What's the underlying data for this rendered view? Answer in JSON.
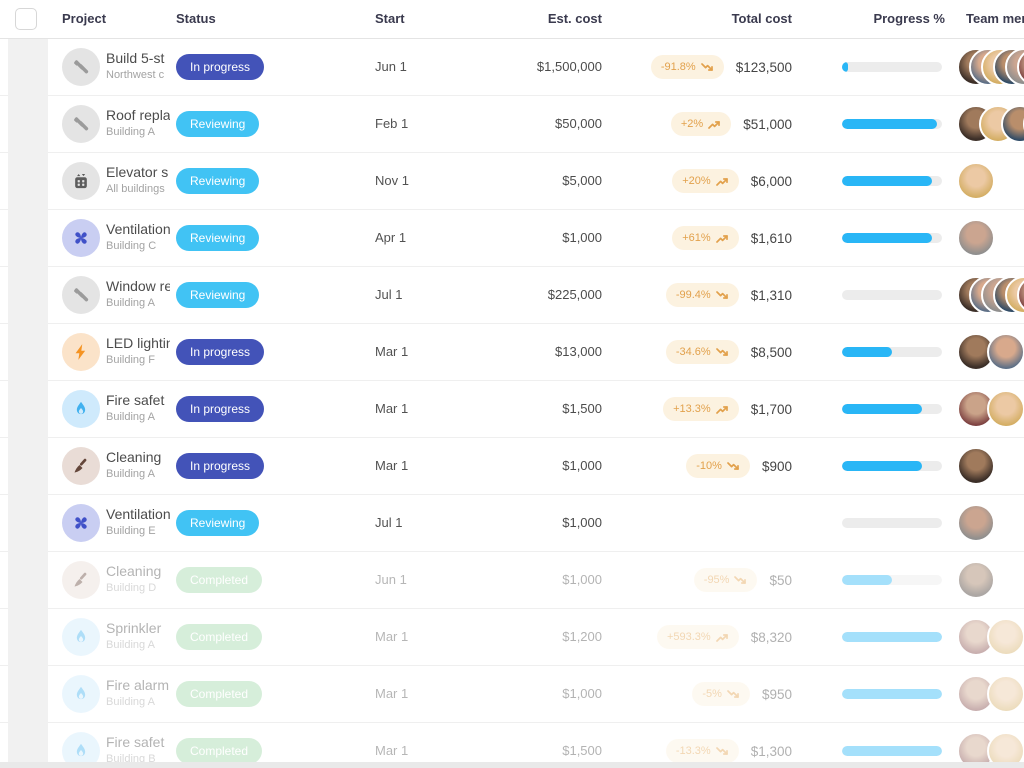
{
  "table": {
    "columns": [
      "Project",
      "Status",
      "Start",
      "Est. cost",
      "Total cost",
      "Progress %",
      "Team members"
    ]
  },
  "status_colors": {
    "In progress": "#4353b8",
    "Reviewing": "#41c3f4",
    "Completed": "#9fd8a8"
  },
  "icon_styles": {
    "tools": {
      "bg": "#e4e4e4",
      "fg": "#9b9b9b"
    },
    "elevator": {
      "bg": "#e4e4e4",
      "fg": "#5c5c5c"
    },
    "fan": {
      "bg": "#c9cef2",
      "fg": "#4051c8"
    },
    "bolt": {
      "bg": "#fbe3c9",
      "fg": "#f59322"
    },
    "flame": {
      "bg": "#cfeafc",
      "fg": "#41b1ef"
    },
    "broom": {
      "bg": "#e9dcd6",
      "fg": "#64463a"
    }
  },
  "accent": {
    "progress_fill": "#29b6f6",
    "change_badge_bg": "#fcf2e0",
    "change_badge_fg": "#e2a14c"
  },
  "rows": [
    {
      "icon": "tools",
      "name": "Build 5-st",
      "location": "Northwest c",
      "status": "In progress",
      "start": "Jun 1",
      "est_cost": "$1,500,000",
      "change": "-91.8%",
      "trend": "down",
      "total_cost": "$123,500",
      "progress_pct": 6,
      "team": [
        0,
        2,
        1,
        5,
        3,
        4
      ]
    },
    {
      "icon": "tools",
      "name": "Roof repla",
      "location": "Building A",
      "status": "Reviewing",
      "start": "Feb 1",
      "est_cost": "$50,000",
      "change": "+2%",
      "trend": "up",
      "total_cost": "$51,000",
      "progress_pct": 95,
      "team": [
        0,
        1,
        5,
        2
      ]
    },
    {
      "icon": "elevator",
      "name": "Elevator s",
      "location": "All buildings",
      "status": "Reviewing",
      "start": "Nov 1",
      "est_cost": "$5,000",
      "change": "+20%",
      "trend": "up",
      "total_cost": "$6,000",
      "progress_pct": 90,
      "team": [
        1
      ]
    },
    {
      "icon": "fan",
      "name": "Ventilation",
      "location": "Building C",
      "status": "Reviewing",
      "start": "Apr 1",
      "est_cost": "$1,000",
      "change": "+61%",
      "trend": "up",
      "total_cost": "$1,610",
      "progress_pct": 90,
      "team": [
        3
      ]
    },
    {
      "icon": "tools",
      "name": "Window re",
      "location": "Building A",
      "status": "Reviewing",
      "start": "Jul 1",
      "est_cost": "$225,000",
      "change": "-99.4%",
      "trend": "down",
      "total_cost": "$1,310",
      "progress_pct": 0,
      "team": [
        0,
        2,
        3,
        5,
        1,
        4
      ]
    },
    {
      "icon": "bolt",
      "name": "LED lightin",
      "location": "Building F",
      "status": "In progress",
      "start": "Mar 1",
      "est_cost": "$13,000",
      "change": "-34.6%",
      "trend": "down",
      "total_cost": "$8,500",
      "progress_pct": 50,
      "team": [
        0,
        2
      ]
    },
    {
      "icon": "flame",
      "name": "Fire safet",
      "location": "Building A",
      "status": "In progress",
      "start": "Mar 1",
      "est_cost": "$1,500",
      "change": "+13.3%",
      "trend": "up",
      "total_cost": "$1,700",
      "progress_pct": 80,
      "team": [
        4,
        1
      ]
    },
    {
      "icon": "broom",
      "name": "Cleaning",
      "location": "Building A",
      "status": "In progress",
      "start": "Mar 1",
      "est_cost": "$1,000",
      "change": "-10%",
      "trend": "down",
      "total_cost": "$900",
      "progress_pct": 80,
      "team": [
        0
      ]
    },
    {
      "icon": "fan",
      "name": "Ventilation",
      "location": "Building E",
      "status": "Reviewing",
      "start": "Jul 1",
      "est_cost": "$1,000",
      "change": null,
      "trend": null,
      "total_cost": null,
      "progress_pct": 0,
      "team": [
        3
      ]
    },
    {
      "icon": "broom",
      "name": "Cleaning",
      "location": "Building D",
      "status": "Completed",
      "start": "Jun 1",
      "est_cost": "$1,000",
      "change": "-95%",
      "trend": "down",
      "total_cost": "$50",
      "progress_pct": 50,
      "team": [
        0
      ]
    },
    {
      "icon": "flame",
      "name": "Sprinkler",
      "location": "Building A",
      "status": "Completed",
      "start": "Mar 1",
      "est_cost": "$1,200",
      "change": "+593.3%",
      "trend": "up",
      "total_cost": "$8,320",
      "progress_pct": 100,
      "team": [
        4,
        1
      ]
    },
    {
      "icon": "flame",
      "name": "Fire alarm",
      "location": "Building A",
      "status": "Completed",
      "start": "Mar 1",
      "est_cost": "$1,000",
      "change": "-5%",
      "trend": "down",
      "total_cost": "$950",
      "progress_pct": 100,
      "team": [
        4,
        1
      ]
    },
    {
      "icon": "flame",
      "name": "Fire safet",
      "location": "Building B",
      "status": "Completed",
      "start": "Mar 1",
      "est_cost": "$1,500",
      "change": "-13.3%",
      "trend": "down",
      "total_cost": "$1,300",
      "progress_pct": 100,
      "team": [
        4,
        1
      ]
    }
  ]
}
